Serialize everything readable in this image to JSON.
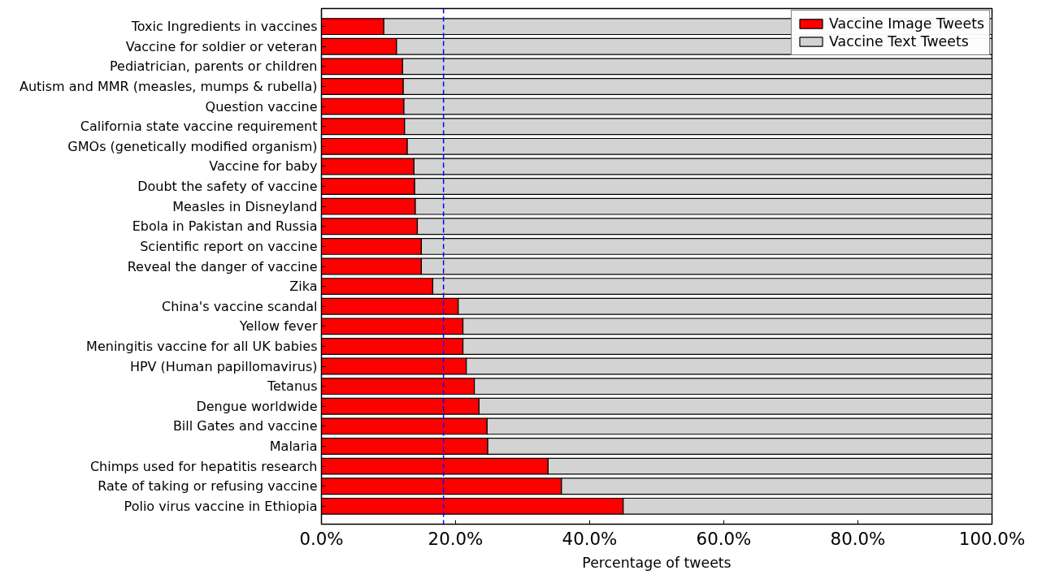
{
  "chart_data": {
    "type": "bar",
    "orientation": "horizontal",
    "stacked": true,
    "xlabel": "Percentage of tweets",
    "categories": [
      "Toxic Ingredients in vaccines",
      "Vaccine for soldier or veteran",
      "Pediatrician, parents or children",
      "Autism and MMR (measles, mumps & rubella)",
      "Question vaccine",
      "California state vaccine requirement",
      "GMOs (genetically modified organism)",
      "Vaccine for baby",
      "Doubt the safety of vaccine",
      "Measles in Disneyland",
      "Ebola in Pakistan and Russia",
      "Scientific report on vaccine",
      "Reveal the danger of vaccine",
      "Zika",
      "China's vaccine scandal",
      "Yellow fever",
      "Meningitis vaccine for all UK babies",
      "HPV (Human papillomavirus)",
      "Tetanus",
      "Dengue worldwide",
      "Bill Gates and vaccine",
      "Malaria",
      "Chimps used for hepatitis research",
      "Rate of taking or refusing vaccine",
      "Polio virus vaccine in Ethiopia"
    ],
    "series": [
      {
        "name": "Vaccine Image Tweets",
        "color": "#ff0000",
        "values": [
          9.3,
          11.2,
          12.1,
          12.2,
          12.3,
          12.4,
          12.8,
          13.8,
          13.9,
          14.0,
          14.3,
          14.9,
          14.9,
          16.6,
          20.4,
          21.1,
          21.1,
          21.6,
          22.8,
          23.5,
          24.7,
          24.8,
          33.8,
          35.8,
          45.0
        ]
      },
      {
        "name": "Vaccine Text Tweets",
        "color": "#d3d3d3",
        "values": [
          90.7,
          88.8,
          87.9,
          87.8,
          87.7,
          87.6,
          87.2,
          86.2,
          86.1,
          86.0,
          85.7,
          85.1,
          85.1,
          83.4,
          79.6,
          78.9,
          78.9,
          78.4,
          77.2,
          76.5,
          75.3,
          75.2,
          66.2,
          64.2,
          55.0
        ]
      }
    ],
    "xlim": [
      0,
      100
    ],
    "xticks": [
      {
        "value": 0,
        "label": "0.0%"
      },
      {
        "value": 20,
        "label": "20.0%"
      },
      {
        "value": 40,
        "label": "40.0%"
      },
      {
        "value": 60,
        "label": "60.0%"
      },
      {
        "value": 80,
        "label": "80.0%"
      },
      {
        "value": 100,
        "label": "100.0%"
      }
    ],
    "ref_lines": [
      {
        "axis": "x",
        "value": 18.2,
        "label": null,
        "color": "#0000ff",
        "line_style": "dashed"
      }
    ],
    "legend": "top right",
    "grid": false
  }
}
